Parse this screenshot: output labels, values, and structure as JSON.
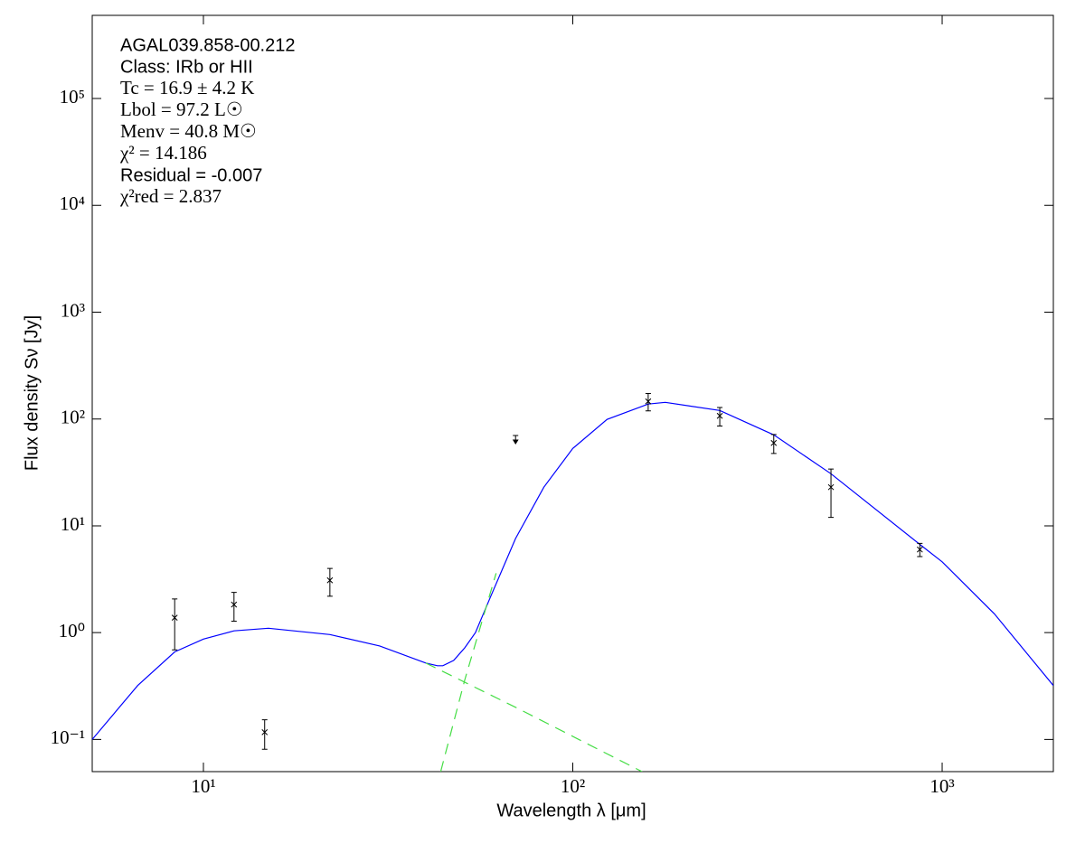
{
  "chart_data": {
    "type": "line",
    "xlabel": "Wavelength λ [μm]",
    "ylabel": "Flux density Sν [Jy]",
    "log_x": true,
    "log_y": true,
    "xlim": [
      5,
      2000
    ],
    "ylim": [
      0.05,
      600000
    ],
    "xticks": [
      {
        "value": 10,
        "label": "10¹"
      },
      {
        "value": 100,
        "label": "10²"
      },
      {
        "value": 1000,
        "label": "10³"
      }
    ],
    "yticks": [
      {
        "value": 0.1,
        "label": "10⁻¹"
      },
      {
        "value": 1,
        "label": "10⁰"
      },
      {
        "value": 10,
        "label": "10¹"
      },
      {
        "value": 100,
        "label": "10²"
      },
      {
        "value": 1000,
        "label": "10³"
      },
      {
        "value": 10000,
        "label": "10⁴"
      },
      {
        "value": 100000,
        "label": "10⁵"
      }
    ],
    "annotations": [
      "AGAL039.858-00.212",
      "Class: IRb or HII",
      "Tc = 16.9 ± 4.2 K",
      "Lbol = 97.2 L☉",
      "Menv = 40.8 M☉",
      "χ² = 14.186",
      "Residual = -0.007",
      "χ²red = 2.837"
    ],
    "series": [
      {
        "color": "#0000ff",
        "dashed": false,
        "x": [
          5,
          6.64,
          8.36,
          10,
          12.1,
          15,
          22,
          30,
          40,
          43,
          44.5,
          47.6,
          51,
          54.5,
          60,
          70,
          83.5,
          100,
          123.8,
          160,
          178,
          250,
          350,
          500,
          870,
          1000,
          1385,
          2000
        ],
        "values": [
          0.1,
          0.32,
          0.66,
          0.87,
          1.04,
          1.1,
          0.96,
          0.75,
          0.52,
          0.49,
          0.49,
          0.55,
          0.72,
          1.0,
          2.2,
          7.6,
          23,
          53,
          99,
          138,
          143,
          120,
          71,
          30.7,
          6.7,
          4.6,
          1.5,
          0.32
        ]
      },
      {
        "color": "#44dd44",
        "dashed": true,
        "x": [
          40,
          70,
          154
        ],
        "values": [
          0.52,
          0.2,
          0.05
        ]
      },
      {
        "color": "#44dd44",
        "dashed": true,
        "x": [
          43.9,
          51,
          62
        ],
        "values": [
          0.05,
          0.36,
          3.6
        ]
      }
    ],
    "points": {
      "color": "#000000",
      "x": [
        8.36,
        12.1,
        14.65,
        22,
        160,
        250,
        350,
        500,
        870
      ],
      "values": [
        1.38,
        1.83,
        0.117,
        3.09,
        146,
        107,
        59.6,
        23,
        6.0
      ],
      "errors": [
        0.69,
        0.55,
        0.036,
        0.9,
        27,
        21,
        12,
        11,
        0.85
      ]
    },
    "upper_limits": {
      "color": "#000000",
      "x": [
        70
      ],
      "values": [
        70
      ]
    }
  }
}
